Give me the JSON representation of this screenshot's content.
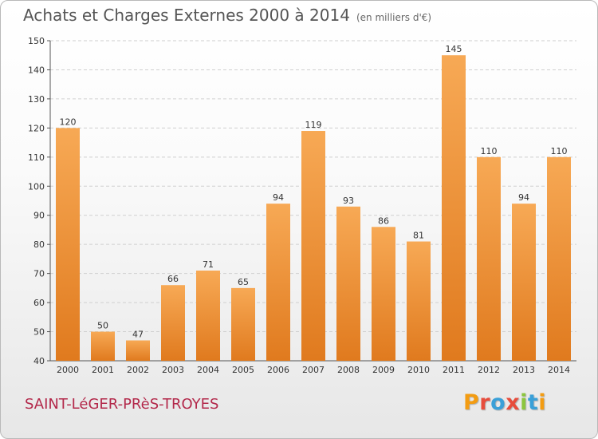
{
  "header": {
    "title": "Achats et Charges Externes 2000 à 2014",
    "unit": "(en milliers d'€)"
  },
  "footer": {
    "town": "SAINT-LéGER-PRèS-TROYES",
    "logo_letters": [
      {
        "char": "P",
        "color": "#f39c12"
      },
      {
        "char": "r",
        "color": "#e74c3c"
      },
      {
        "char": "o",
        "color": "#3aa0d8"
      },
      {
        "char": "x",
        "color": "#e74c3c"
      },
      {
        "char": "i",
        "color": "#8cc63f"
      },
      {
        "char": "t",
        "color": "#3aa0d8"
      },
      {
        "char": "i",
        "color": "#f39c12"
      }
    ]
  },
  "colors": {
    "bar_light": "#f7a955",
    "bar_dark": "#e07a1e",
    "grid": "#cfcfcf"
  },
  "chart_data": {
    "type": "bar",
    "title": "Achats et Charges Externes 2000 à 2014",
    "subtitle": "(en milliers d'€)",
    "categories": [
      "2000",
      "2001",
      "2002",
      "2003",
      "2004",
      "2005",
      "2006",
      "2007",
      "2008",
      "2009",
      "2010",
      "2011",
      "2012",
      "2013",
      "2014"
    ],
    "values": [
      120,
      50,
      47,
      66,
      71,
      65,
      94,
      119,
      93,
      86,
      81,
      145,
      110,
      94,
      110
    ],
    "ylim": [
      40,
      150
    ],
    "yticks": [
      40,
      50,
      60,
      70,
      80,
      90,
      100,
      110,
      120,
      130,
      140,
      150
    ],
    "grid": true,
    "xlabel": "",
    "ylabel": ""
  }
}
